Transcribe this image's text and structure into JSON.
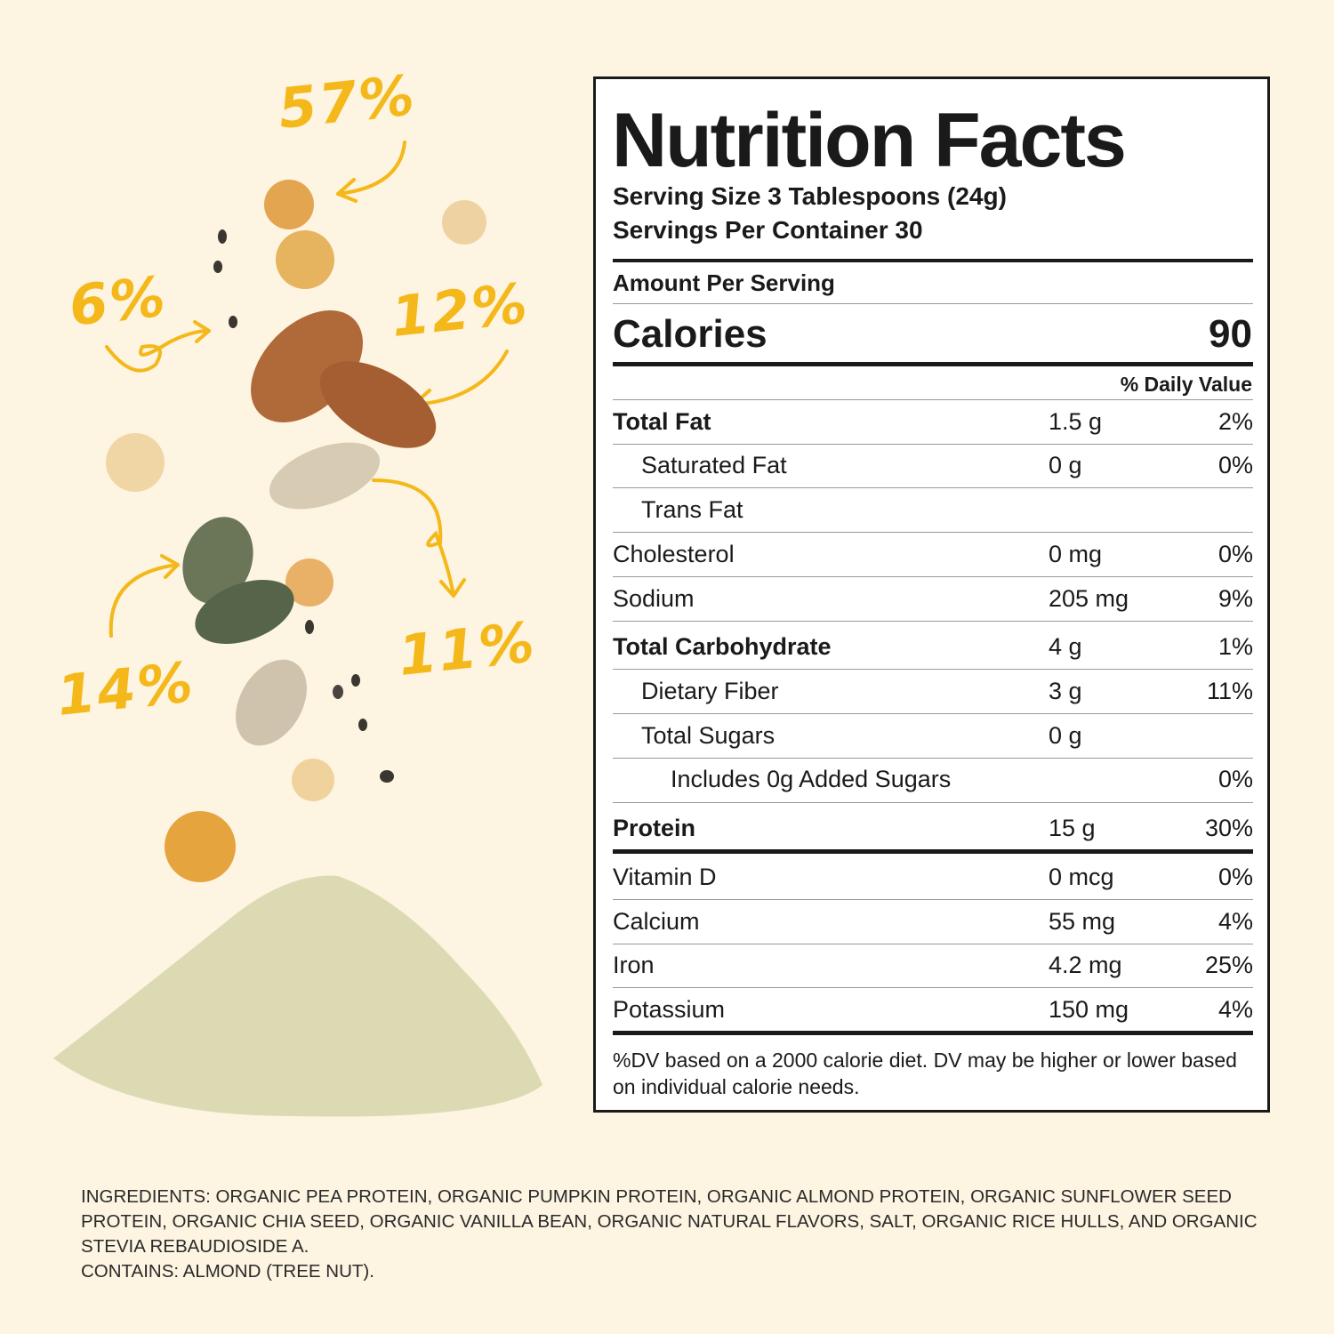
{
  "annotations": {
    "a57": "57%",
    "a6": "6%",
    "a12": "12%",
    "a11": "11%",
    "a14": "14%"
  },
  "colors": {
    "background": "#fdf4e1",
    "annotation": "#f4b81a",
    "label_border": "#1a1a1a"
  },
  "label": {
    "title": "Nutrition Facts",
    "serving_size": "Serving Size 3 Tablespoons (24g)",
    "servings_per_container": "Servings Per Container 30",
    "amount_per_serving": "Amount Per Serving",
    "calories_label": "Calories",
    "calories_value": "90",
    "daily_value_header": "% Daily Value",
    "rows": [
      {
        "name": "Total Fat",
        "amount": "1.5 g",
        "dv": "2%"
      },
      {
        "name": "Saturated Fat",
        "amount": "0 g",
        "dv": "0%"
      },
      {
        "name": "Trans Fat",
        "amount": "",
        "dv": ""
      },
      {
        "name": "Cholesterol",
        "amount": "0 mg",
        "dv": "0%"
      },
      {
        "name": "Sodium",
        "amount": "205 mg",
        "dv": "9%"
      },
      {
        "name": "Total Carbohydrate",
        "amount": "4 g",
        "dv": "1%"
      },
      {
        "name": "Dietary Fiber",
        "amount": "3 g",
        "dv": "11%"
      },
      {
        "name": "Total Sugars",
        "amount": "0 g",
        "dv": ""
      },
      {
        "name": "Includes 0g Added Sugars",
        "amount": "",
        "dv": "0%"
      },
      {
        "name": "Protein",
        "amount": "15 g",
        "dv": "30%"
      },
      {
        "name": "Vitamin D",
        "amount": "0 mcg",
        "dv": "0%"
      },
      {
        "name": "Calcium",
        "amount": "55 mg",
        "dv": "4%"
      },
      {
        "name": "Iron",
        "amount": "4.2 mg",
        "dv": "25%"
      },
      {
        "name": "Potassium",
        "amount": "150 mg",
        "dv": "4%"
      }
    ],
    "footnote": "%DV based on a 2000 calorie diet. DV may be higher or lower based on individual calorie needs."
  },
  "ingredients": {
    "text": "INGREDIENTS: ORGANIC PEA PROTEIN, ORGANIC PUMPKIN PROTEIN, ORGANIC ALMOND PROTEIN, ORGANIC SUNFLOWER SEED PROTEIN, ORGANIC CHIA SEED, ORGANIC VANILLA BEAN, ORGANIC NATURAL FLAVORS, SALT, ORGANIC RICE HULLS, AND ORGANIC STEVIA REBAUDIOSIDE A.",
    "contains": "CONTAINS: ALMOND (TREE NUT)."
  }
}
